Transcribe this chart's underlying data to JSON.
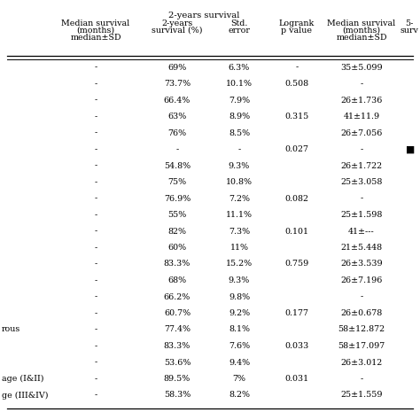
{
  "group_header": "2-years survival",
  "col_headers_line1": [
    "Median survival",
    "2-years",
    "Std.",
    "Logrank",
    "Median survival",
    "5-"
  ],
  "col_headers_line2": [
    "(months)",
    "survival (%)",
    "error",
    "p value",
    "(months)",
    "surv"
  ],
  "col_headers_line3": [
    "median±SD",
    "",
    "",
    "",
    "median±SD",
    ""
  ],
  "row_labels": [
    "",
    "",
    "",
    "",
    "",
    "",
    "",
    "",
    "",
    "",
    "",
    "",
    "",
    "",
    "",
    "",
    "rous",
    "",
    "",
    "age (I&II)",
    "ge (III&IV)"
  ],
  "col0": [
    "-",
    "-",
    "-",
    "-",
    "-",
    "-",
    "-",
    "-",
    "-",
    "-",
    "-",
    "-",
    "-",
    "-",
    "-",
    "-",
    "-",
    "-",
    "-",
    "-",
    "-"
  ],
  "col1": [
    "69%",
    "73.7%",
    "66.4%",
    "63%",
    "76%",
    "-",
    "54.8%",
    "75%",
    "76.9%",
    "55%",
    "82%",
    "60%",
    "83.3%",
    "68%",
    "66.2%",
    "60.7%",
    "77.4%",
    "83.3%",
    "53.6%",
    "89.5%",
    "58.3%"
  ],
  "col2": [
    "6.3%",
    "10.1%",
    "7.9%",
    "8.9%",
    "8.5%",
    "-",
    "9.3%",
    "10.8%",
    "7.2%",
    "11.1%",
    "7.3%",
    "11%",
    "15.2%",
    "9.3%",
    "9.8%",
    "9.2%",
    "8.1%",
    "7.6%",
    "9.4%",
    "7%",
    "8.2%"
  ],
  "col3": [
    "-",
    "0.508",
    "",
    "0.315",
    "",
    "0.027",
    "",
    "",
    "0.082",
    "",
    "0.101",
    "",
    "0.759",
    "",
    "",
    "0.177",
    "",
    "0.033",
    "",
    "0.031",
    ""
  ],
  "col4": [
    "35±5.099",
    "-",
    "26±1.736",
    "41±11.9",
    "26±7.056",
    "-",
    "26±1.722",
    "25±3.058",
    "-",
    "25±1.598",
    "41±---",
    "21±5.448",
    "26±3.539",
    "26±7.196",
    "-",
    "26±0.678",
    "58±12.872",
    "58±17.097",
    "26±3.012",
    "-",
    "25±1.559"
  ],
  "col5": [
    "",
    "",
    "",
    "",
    "",
    "■",
    "",
    "",
    "",
    "",
    "",
    "",
    "",
    "",
    "",
    "",
    "",
    "",
    "",
    "",
    ""
  ],
  "background_color": "#ffffff",
  "font_size": 6.8,
  "group_header_fontsize": 7.2
}
